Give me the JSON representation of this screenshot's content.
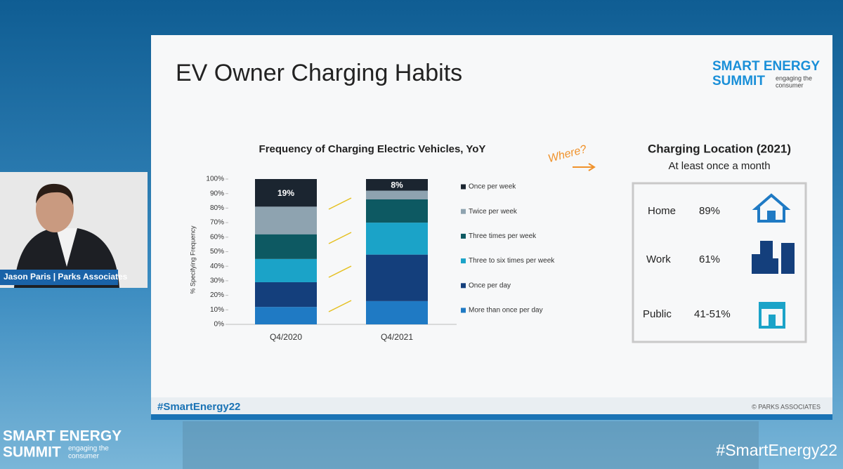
{
  "slide": {
    "title": "EV Owner Charging Habits",
    "logo": {
      "line1": "SMART ENERGY",
      "line2": "SUMMIT",
      "tag1": "engaging the",
      "tag2": "consumer"
    },
    "annotation": "Where?",
    "hashtag": "#SmartEnergy22",
    "copyright": "© PARKS ASSOCIATES",
    "location_panel": {
      "title": "Charging Location (2021)",
      "subtitle": "At least once a month",
      "rows": [
        {
          "label": "Home",
          "value": "89%"
        },
        {
          "label": "Work",
          "value": "61%"
        },
        {
          "label": "Public",
          "value": "41-51%"
        }
      ]
    }
  },
  "chart_data": {
    "type": "stacked_bar",
    "title": "Frequency of Charging Electric Vehicles, YoY",
    "y_label": "% Specifying Frequency",
    "categories": [
      "Q4/2020",
      "Q4/2021"
    ],
    "ylim": [
      0,
      100
    ],
    "yticks": [
      {
        "value": 0,
        "label": "0%"
      },
      {
        "value": 10,
        "label": "10%"
      },
      {
        "value": 20,
        "label": "20%"
      },
      {
        "value": 30,
        "label": "30%"
      },
      {
        "value": 40,
        "label": "40%"
      },
      {
        "value": 50,
        "label": "50%"
      },
      {
        "value": 60,
        "label": "60%"
      },
      {
        "value": 70,
        "label": "70%"
      },
      {
        "value": 80,
        "label": "80%"
      },
      {
        "value": 90,
        "label": "90%"
      },
      {
        "value": 100,
        "label": "100%"
      }
    ],
    "series": [
      {
        "name": "More than once per day",
        "color": "#1f7ac4",
        "values": [
          12,
          16
        ]
      },
      {
        "name": "Once per day",
        "color": "#143f7c",
        "values": [
          17,
          32
        ]
      },
      {
        "name": "Three to six times per week",
        "color": "#1ba3c8",
        "values": [
          16,
          22
        ]
      },
      {
        "name": "Three times per week",
        "color": "#0d5962",
        "values": [
          17,
          16
        ]
      },
      {
        "name": "Twice per week",
        "color": "#8ea3b0",
        "values": [
          19,
          6
        ]
      },
      {
        "name": "Once per week",
        "color": "#1b2530",
        "values": [
          19,
          8
        ],
        "value_labels": [
          "19%",
          "8%"
        ]
      }
    ]
  },
  "speaker": {
    "caption": "Jason Paris | Parks Associates"
  },
  "footer": {
    "logo1": "SMART ENERGY",
    "logo2": "SUMMIT",
    "tag1": "engaging the",
    "tag2": "consumer",
    "hashtag": "#SmartEnergy22"
  }
}
